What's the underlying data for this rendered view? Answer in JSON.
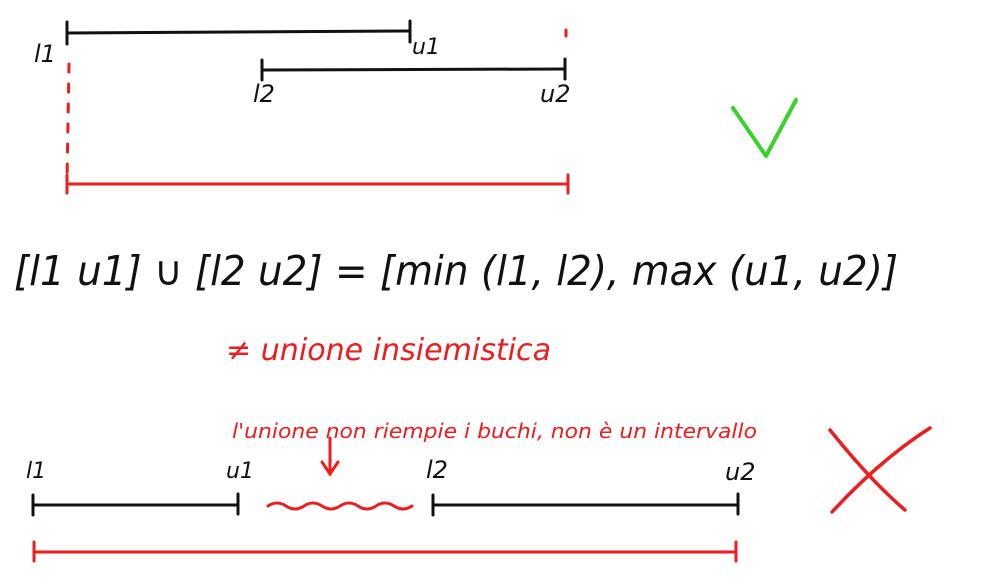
{
  "top_example": {
    "interval1": {
      "left_label": "l1",
      "right_label": "u1"
    },
    "interval2": {
      "left_label": "l2",
      "right_label": "u2"
    },
    "verdict_symbol": "✓",
    "verdict_color": "#39d22b"
  },
  "formula": {
    "text": "[l1 u1] ∪ [l2 u2] = [min (l1, l2), max (u1, u2)]",
    "note": "≠ unione insiemistica",
    "note_color": "#ee1c1c"
  },
  "bottom_example": {
    "annotation": "l'unione non riempie i buchi, non è un intervallo",
    "interval1": {
      "left_label": "l1",
      "right_label": "u1"
    },
    "interval2": {
      "left_label": "l2",
      "right_label": "u2"
    },
    "verdict_symbol": "✗",
    "verdict_color": "#ee1c1c"
  },
  "colors": {
    "ink": "#111111",
    "red": "#ee1c1c",
    "green": "#39d22b"
  }
}
